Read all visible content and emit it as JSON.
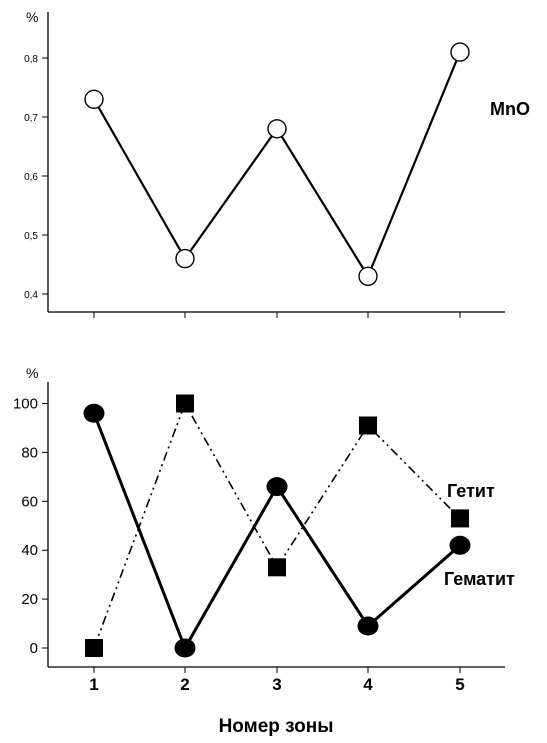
{
  "chart_data": [
    {
      "type": "line",
      "ylabel": "%",
      "x": [
        1,
        2,
        3,
        4,
        5
      ],
      "ylim": [
        0.35,
        0.85
      ],
      "yticks": [
        "0,4",
        "0,5",
        "0,6",
        "0,7",
        "0,8"
      ],
      "series": [
        {
          "name": "MnO",
          "values": [
            0.73,
            0.46,
            0.68,
            0.43,
            0.81
          ],
          "marker": "open-circle",
          "line": "solid"
        }
      ]
    },
    {
      "type": "line",
      "ylabel": "%",
      "xlabel": "Номер зоны",
      "x": [
        1,
        2,
        3,
        4,
        5
      ],
      "xticks": [
        "1",
        "2",
        "3",
        "4",
        "5"
      ],
      "ylim": [
        -8,
        112
      ],
      "yticks": [
        "0",
        "20",
        "40",
        "60",
        "80",
        "100"
      ],
      "series": [
        {
          "name": "Гетит",
          "values": [
            0,
            100,
            33,
            91,
            53
          ],
          "marker": "filled-square",
          "line": "dash-dot-dot"
        },
        {
          "name": "Гематит",
          "values": [
            96,
            0,
            66,
            9,
            42
          ],
          "marker": "filled-circle",
          "line": "solid"
        }
      ]
    }
  ]
}
